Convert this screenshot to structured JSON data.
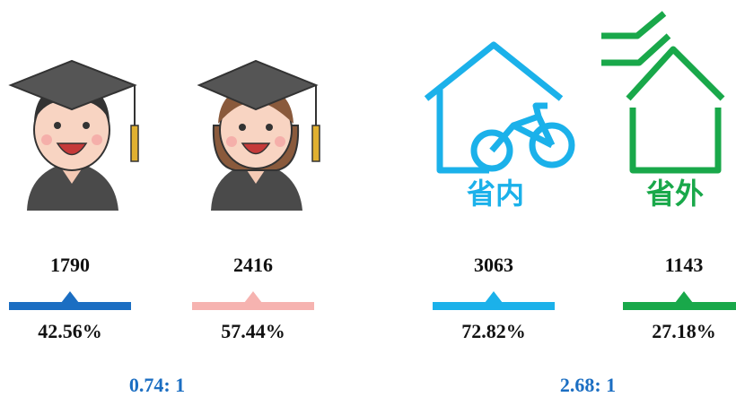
{
  "items": [
    {
      "count": "1790",
      "percent": "42.56%",
      "color": "#1b6ec2"
    },
    {
      "count": "2416",
      "percent": "57.44%",
      "color": "#f6b3b0"
    },
    {
      "count": "3063",
      "percent": "72.82%",
      "color": "#1bb1ea"
    },
    {
      "count": "1143",
      "percent": "27.18%",
      "color": "#19a84a"
    }
  ],
  "labels": [
    "省内",
    "省外"
  ],
  "ratios": [
    "0.74: 1",
    "2.68: 1"
  ]
}
